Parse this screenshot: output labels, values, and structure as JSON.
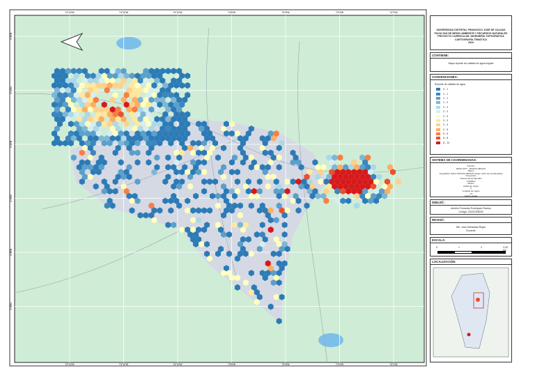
{
  "header": {
    "lines": [
      "UNIVERSIDAD DISTRITAL FRANCISCO JOSÉ DE CALDAS",
      "FACULTAD DE MEDIO AMBIENTE Y RECURSOS NATURALES",
      "PROYECTO CURRICULAR: INGENIERÍA TOPOGRÁFICA",
      "CARTOGRAFÍA TEMÁTICA",
      "2024"
    ]
  },
  "contents": {
    "title": "CONTIENE:",
    "text": "Mapa reporte de calidad de agua bogotá"
  },
  "legend": {
    "title": "CONVENCIONES:",
    "subtitle": "Reporte de calidad de agua",
    "classes": [
      {
        "label": "0 - 1",
        "color": "#2c7bb6"
      },
      {
        "label": "1 - 1",
        "color": "#3a86bd"
      },
      {
        "label": "1 - 1",
        "color": "#5b9fcb"
      },
      {
        "label": "1 - 2",
        "color": "#7fb6d6"
      },
      {
        "label": "2 - 2",
        "color": "#abd9e9"
      },
      {
        "label": "2 - 2",
        "color": "#d7eef0"
      },
      {
        "label": "2 - 3",
        "color": "#ffffbf"
      },
      {
        "label": "3 - 3",
        "color": "#fee8a0"
      },
      {
        "label": "3 - 4",
        "color": "#fed18a"
      },
      {
        "label": "4 - 5",
        "color": "#fdae61"
      },
      {
        "label": "5 - 6",
        "color": "#f77e45"
      },
      {
        "label": "6 - 8",
        "color": "#e8502e"
      },
      {
        "label": "8 - 14",
        "color": "#d7191c"
      }
    ]
  },
  "coordinates": {
    "title": "SISTEMA DE COORDENADAS:",
    "lines": [
      "Nombre",
      "EPSG 9377 - MAGNA-SIRGAS",
      "Datum",
      "Geográfica: Datum MAGNA-SIRGAS (origen único de coordenadas)",
      "Proyección",
      "Transversa de Mercator",
      "Unidades",
      "Metros",
      "Latitud de origen",
      "4",
      "Longitud de origen",
      "-73",
      "Factor escala",
      "0,9992"
    ]
  },
  "drawn_by": {
    "title": "DIBUJÓ:",
    "lines": [
      "Andrés Fernando Rodríguez Ramos",
      "Código: 20221025030"
    ]
  },
  "reviewed_by": {
    "title": "REVISÓ:",
    "lines": [
      "Mtr. Juan Sebastián Rojas",
      "Docente"
    ]
  },
  "scale": {
    "title": "ESCALA:",
    "labels": [
      "0",
      "1",
      "2",
      "3,25 km"
    ]
  },
  "location": {
    "title": "LOCALIZACIÓN:"
  },
  "frame": {
    "top_labels": [
      "74°14'W",
      "74°12'W",
      "74°10'W",
      "74°8'W",
      "74°6'W",
      "74°4'W",
      "74°2'W"
    ],
    "left_labels": [
      "4°46'N",
      "4°44'N",
      "4°42'N",
      "4°40'N",
      "4°38'N",
      "4°36'N"
    ]
  }
}
